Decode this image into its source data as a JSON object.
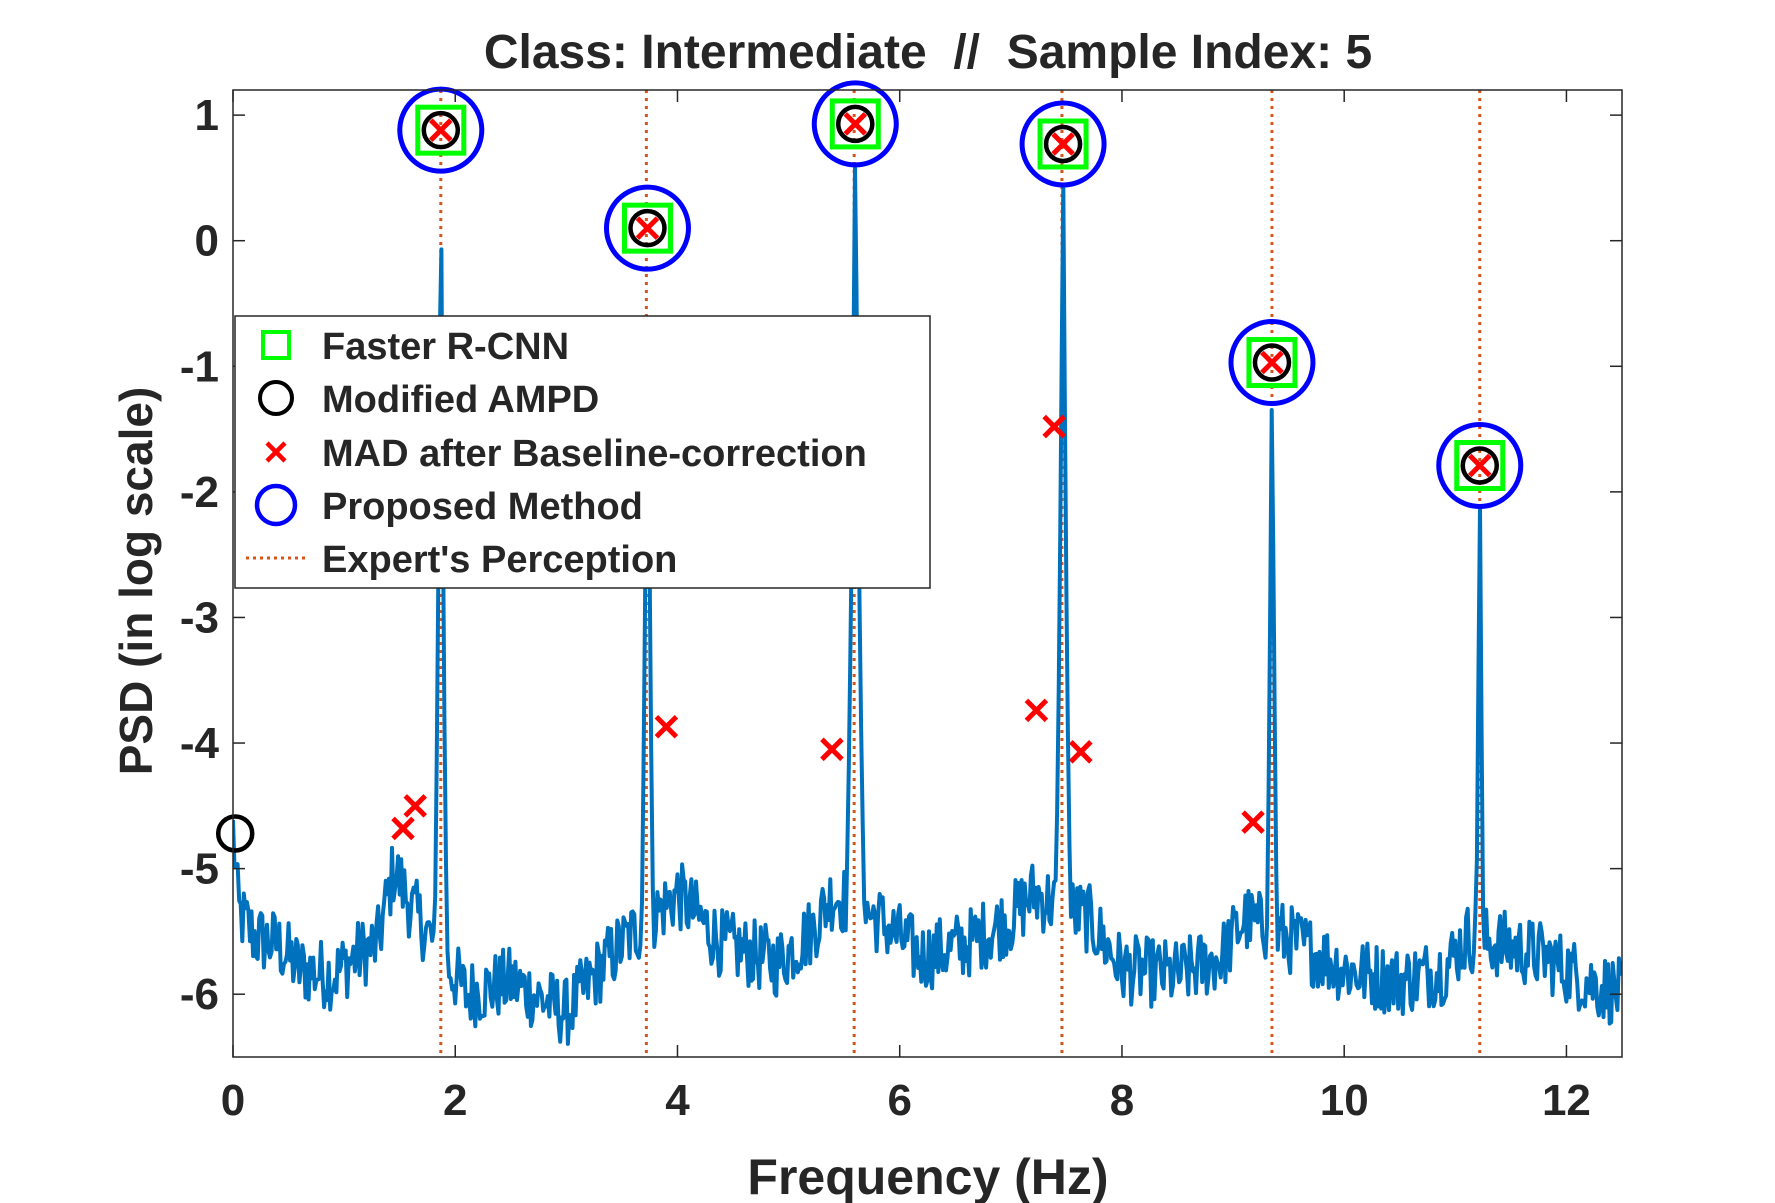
{
  "chart_data": {
    "type": "line",
    "title": "Class: Intermediate  //  Sample Index: 5",
    "xlabel": "Frequency (Hz)",
    "ylabel": "PSD (in log scale)",
    "xlim": [
      0,
      12.5
    ],
    "ylim": [
      -6.5,
      1.2
    ],
    "xticks": [
      0,
      2,
      4,
      6,
      8,
      10,
      12
    ],
    "yticks": [
      1,
      0,
      -1,
      -2,
      -3,
      -4,
      -5,
      -6
    ],
    "grid": false,
    "legend_position": "left",
    "colors": {
      "psd": "#0072BD",
      "faster_rcnn": "#00FF00",
      "modified_ampd": "#000000",
      "mad": "#FF0000",
      "proposed": "#0000FF",
      "expert": "#D95319",
      "axis": "#262626"
    },
    "legend": [
      {
        "key": "faster_rcnn",
        "label": "Faster R-CNN",
        "marker": "square"
      },
      {
        "key": "modified_ampd",
        "label": "Modified AMPD",
        "marker": "circle"
      },
      {
        "key": "mad",
        "label": "MAD after Baseline-correction",
        "marker": "x"
      },
      {
        "key": "proposed",
        "label": "Proposed Method",
        "marker": "circle-large"
      },
      {
        "key": "expert",
        "label": "Expert's Perception",
        "marker": "dotted-line"
      }
    ],
    "peaks": [
      {
        "x": 1.87,
        "y": 0.88
      },
      {
        "x": 3.73,
        "y": 0.1
      },
      {
        "x": 5.6,
        "y": 0.93
      },
      {
        "x": 7.47,
        "y": 0.77
      },
      {
        "x": 9.35,
        "y": -0.97
      },
      {
        "x": 11.22,
        "y": -1.79
      }
    ],
    "expert_lines": [
      1.87,
      3.72,
      5.59,
      7.46,
      9.35,
      11.22
    ],
    "faster_rcnn_points": [
      {
        "x": 1.87,
        "y": 0.88
      },
      {
        "x": 3.73,
        "y": 0.1
      },
      {
        "x": 5.6,
        "y": 0.93
      },
      {
        "x": 7.47,
        "y": 0.77
      },
      {
        "x": 9.35,
        "y": -0.97
      },
      {
        "x": 11.22,
        "y": -1.79
      }
    ],
    "modified_ampd_points": [
      {
        "x": 0.02,
        "y": -4.72
      },
      {
        "x": 1.87,
        "y": 0.88
      },
      {
        "x": 3.73,
        "y": 0.1
      },
      {
        "x": 5.6,
        "y": 0.93
      },
      {
        "x": 7.47,
        "y": 0.77
      },
      {
        "x": 9.35,
        "y": -0.97
      },
      {
        "x": 11.22,
        "y": -1.79
      }
    ],
    "mad_points": [
      {
        "x": 1.53,
        "y": -4.68
      },
      {
        "x": 1.64,
        "y": -4.5
      },
      {
        "x": 1.87,
        "y": 0.88
      },
      {
        "x": 3.73,
        "y": 0.1
      },
      {
        "x": 3.9,
        "y": -3.87
      },
      {
        "x": 5.39,
        "y": -4.05
      },
      {
        "x": 5.6,
        "y": 0.93
      },
      {
        "x": 7.23,
        "y": -3.74
      },
      {
        "x": 7.39,
        "y": -1.48
      },
      {
        "x": 7.47,
        "y": 0.77
      },
      {
        "x": 7.63,
        "y": -4.07
      },
      {
        "x": 9.18,
        "y": -4.63
      },
      {
        "x": 9.35,
        "y": -0.97
      },
      {
        "x": 11.22,
        "y": -1.79
      }
    ],
    "proposed_points": [
      {
        "x": 1.87,
        "y": 0.88
      },
      {
        "x": 3.73,
        "y": 0.1
      },
      {
        "x": 5.6,
        "y": 0.93
      },
      {
        "x": 7.47,
        "y": 0.77
      },
      {
        "x": 9.35,
        "y": -0.97
      },
      {
        "x": 11.22,
        "y": -1.79
      }
    ],
    "psd_line": {
      "baseline_points": [
        {
          "x": 0.0,
          "y": -4.7
        },
        {
          "x": 0.05,
          "y": -5.35
        },
        {
          "x": 0.2,
          "y": -5.55
        },
        {
          "x": 0.4,
          "y": -5.6
        },
        {
          "x": 0.6,
          "y": -5.8
        },
        {
          "x": 0.9,
          "y": -5.85
        },
        {
          "x": 1.1,
          "y": -5.7
        },
        {
          "x": 1.3,
          "y": -5.6
        },
        {
          "x": 1.45,
          "y": -5.0
        },
        {
          "x": 1.6,
          "y": -5.3
        },
        {
          "x": 2.1,
          "y": -6.0
        },
        {
          "x": 2.5,
          "y": -5.9
        },
        {
          "x": 3.0,
          "y": -6.15
        },
        {
          "x": 3.3,
          "y": -5.8
        },
        {
          "x": 3.5,
          "y": -5.6
        },
        {
          "x": 4.0,
          "y": -5.2
        },
        {
          "x": 4.4,
          "y": -5.6
        },
        {
          "x": 4.9,
          "y": -5.75
        },
        {
          "x": 5.2,
          "y": -5.5
        },
        {
          "x": 5.4,
          "y": -5.2
        },
        {
          "x": 5.8,
          "y": -5.4
        },
        {
          "x": 6.2,
          "y": -5.7
        },
        {
          "x": 6.6,
          "y": -5.6
        },
        {
          "x": 7.0,
          "y": -5.4
        },
        {
          "x": 7.2,
          "y": -5.2
        },
        {
          "x": 7.7,
          "y": -5.4
        },
        {
          "x": 8.0,
          "y": -5.8
        },
        {
          "x": 8.5,
          "y": -5.85
        },
        {
          "x": 8.9,
          "y": -5.7
        },
        {
          "x": 9.1,
          "y": -5.4
        },
        {
          "x": 9.6,
          "y": -5.6
        },
        {
          "x": 10.0,
          "y": -5.8
        },
        {
          "x": 10.5,
          "y": -5.9
        },
        {
          "x": 10.9,
          "y": -5.8
        },
        {
          "x": 11.1,
          "y": -5.55
        },
        {
          "x": 11.4,
          "y": -5.6
        },
        {
          "x": 11.8,
          "y": -5.7
        },
        {
          "x": 12.2,
          "y": -5.9
        },
        {
          "x": 12.5,
          "y": -6.0
        }
      ],
      "noise_amplitude": 0.28,
      "peak_shapes": [
        {
          "x": 1.87,
          "y": 0.88,
          "width": 0.045
        },
        {
          "x": 3.73,
          "y": 0.1,
          "width": 0.055
        },
        {
          "x": 5.6,
          "y": 0.93,
          "width": 0.07
        },
        {
          "x": 7.47,
          "y": 0.77,
          "width": 0.06
        },
        {
          "x": 9.35,
          "y": -0.97,
          "width": 0.065
        },
        {
          "x": 11.22,
          "y": -1.79,
          "width": 0.06
        }
      ]
    }
  }
}
